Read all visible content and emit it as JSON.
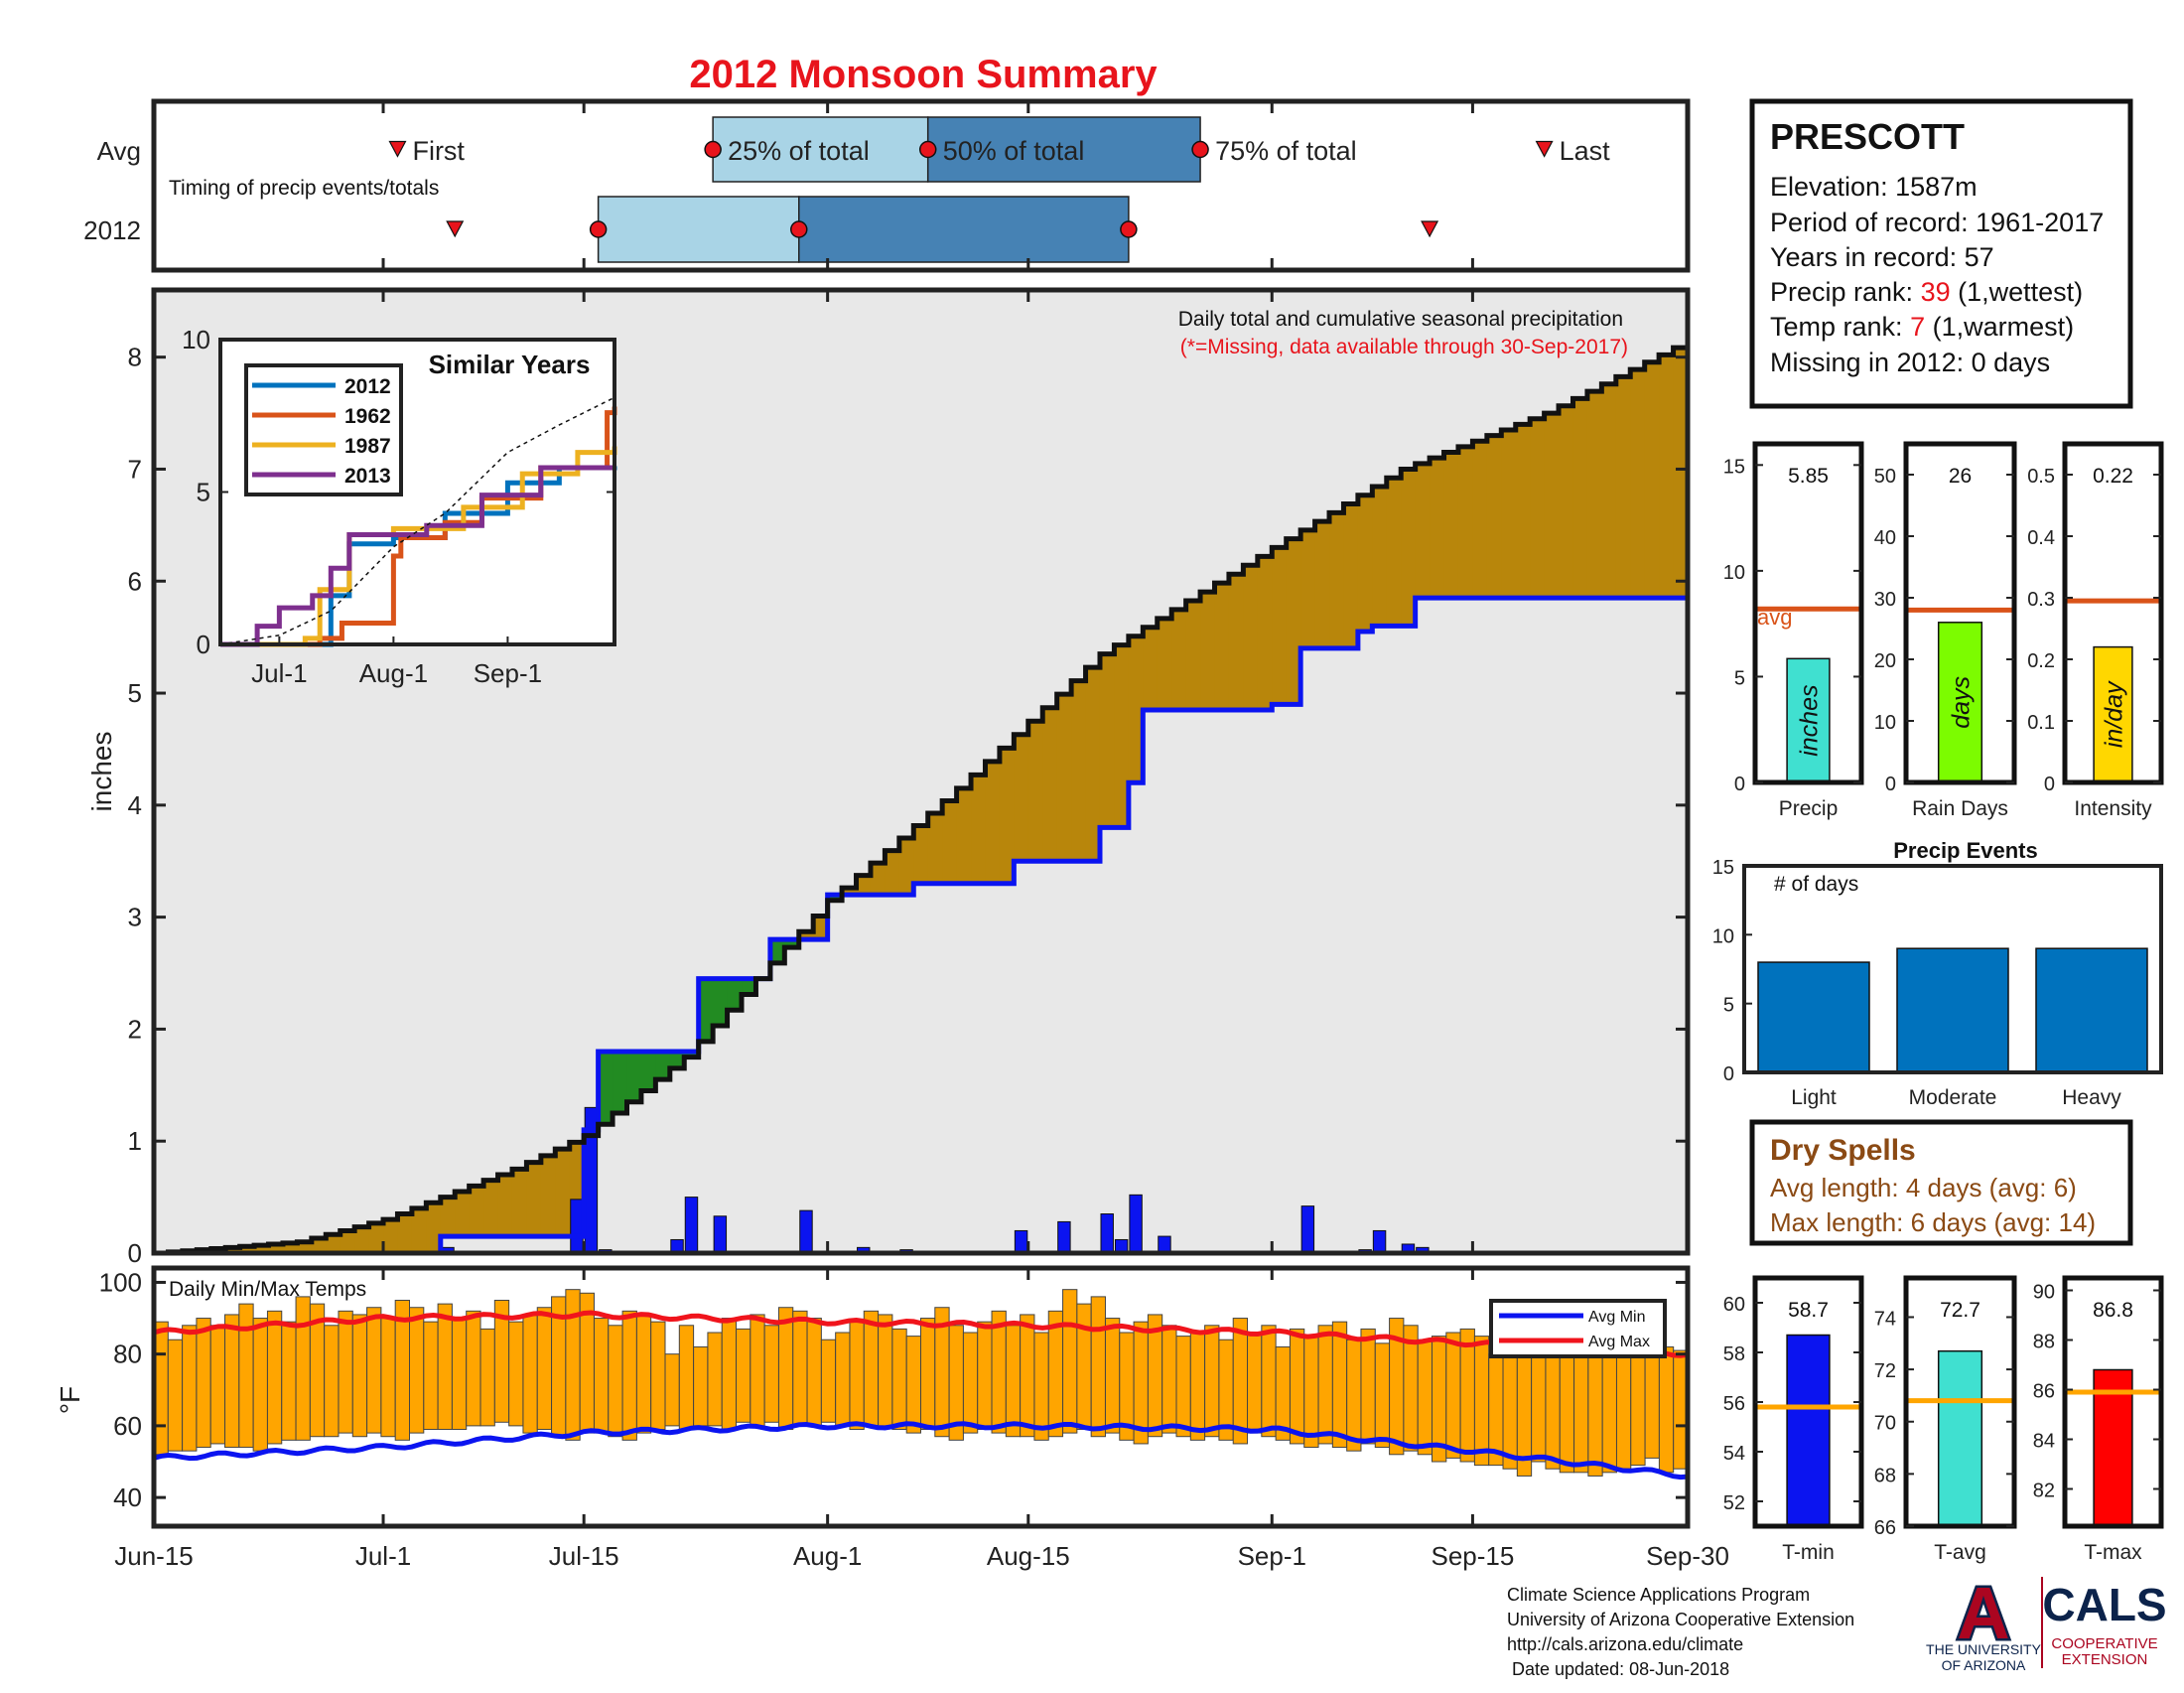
{
  "title": "2012 Monsoon Summary",
  "timing": {
    "subtitle": "Timing of precip events/totals",
    "row_labels": [
      "Avg",
      "2012"
    ],
    "first_label": "First",
    "last_label": "Last",
    "labels": {
      "q25": "25% of total",
      "q50": "50% of total",
      "q75": "75% of total"
    },
    "avg": {
      "first": "2012-07-02",
      "q25": "2012-07-24",
      "q50": "2012-08-08",
      "q75": "2012-08-27",
      "last": "2012-09-20"
    },
    "y2012": {
      "first": "2012-07-06",
      "q25": "2012-07-16",
      "q50": "2012-07-30",
      "q75": "2012-08-22",
      "last": "2012-09-12"
    }
  },
  "info": {
    "station": "PRESCOTT",
    "elevation": "Elevation: 1587m",
    "period": "Period of record: 1961-2017",
    "years": "Years in record: 57",
    "precip_rank_prefix": "Precip rank: ",
    "precip_rank": "39",
    "precip_rank_suffix": " (1,wettest)",
    "temp_rank_prefix": "Temp rank: ",
    "temp_rank": "7",
    "temp_rank_suffix": " (1,warmest)",
    "missing": "Missing in 2012: 0 days"
  },
  "main": {
    "title": "Daily total and cumulative seasonal precipitation",
    "note": "(*=Missing, data available through 30-Sep-2017)",
    "ylabel": "inches",
    "date_ticks": [
      "Jun-15",
      "Jul-1",
      "Jul-15",
      "Aug-1",
      "Aug-15",
      "Sep-1",
      "Sep-15",
      "Sep-30"
    ]
  },
  "inset": {
    "title": "Similar Years",
    "xticks": [
      "Jul-1",
      "Aug-1",
      "Sep-1"
    ],
    "yticks": [
      "0",
      "5",
      "10"
    ],
    "legend": [
      "2012",
      "1962",
      "1987",
      "2013"
    ]
  },
  "temps": {
    "title": "Daily Min/Max Temps",
    "ylabel": "°F",
    "legend_min": "Avg Min",
    "legend_max": "Avg Max"
  },
  "bars": {
    "precip": {
      "value": "5.85",
      "unit": "inches",
      "label": "Precip",
      "avg_label": "avg"
    },
    "raindays": {
      "value": "26",
      "unit": "days",
      "label": "Rain Days"
    },
    "intensity": {
      "value": "0.22",
      "unit": "in/day",
      "label": "Intensity"
    },
    "tmin": {
      "value": "58.7",
      "label": "T-min"
    },
    "tavg": {
      "value": "72.7",
      "label": "T-avg"
    },
    "tmax": {
      "value": "86.8",
      "label": "T-max"
    }
  },
  "events": {
    "title": "Precip Events",
    "ylabel": "# of days",
    "categories": [
      "Light",
      "Moderate",
      "Heavy"
    ],
    "yticks": [
      "0",
      "5",
      "10",
      "15"
    ]
  },
  "dry": {
    "title": "Dry Spells",
    "avg": "Avg length: 4 days (avg: 6)",
    "max": "Max length: 6 days (avg: 14)"
  },
  "footer": {
    "line1": "Climate Science Applications Program",
    "line2": "University of Arizona Cooperative Extension",
    "line3": "http://cals.arizona.edu/climate",
    "line4": " Date updated: 08-Jun-2018"
  },
  "logos": {
    "ua_letter": "A",
    "ua_text1": "THE UNIVERSITY",
    "ua_text2": "OF ARIZONA",
    "cals": "CALS",
    "cals_sub1": "COOPERATIVE",
    "cals_sub2": "EXTENSION"
  },
  "chart_data": [
    {
      "type": "area",
      "title": "Daily total and cumulative seasonal precipitation",
      "ylabel": "inches",
      "ylim": [
        0,
        8.6
      ],
      "x_range": [
        "2012-06-15",
        "2012-09-30"
      ],
      "series": [
        {
          "name": "Avg",
          "x": [
            "2012-06-15",
            "2012-06-25",
            "2012-07-01",
            "2012-07-10",
            "2012-07-15",
            "2012-07-22",
            "2012-08-01",
            "2012-08-10",
            "2012-08-20",
            "2012-09-01",
            "2012-09-10",
            "2012-09-20",
            "2012-09-30"
          ],
          "values": [
            0.0,
            0.1,
            0.3,
            0.75,
            1.05,
            1.75,
            3.15,
            4.15,
            5.35,
            6.3,
            7.0,
            7.5,
            8.15
          ]
        },
        {
          "name": "2012",
          "x": [
            "2012-06-15",
            "2012-07-05",
            "2012-07-14",
            "2012-07-15",
            "2012-07-16",
            "2012-07-22",
            "2012-07-23",
            "2012-07-27",
            "2012-07-28",
            "2012-07-31",
            "2012-08-01",
            "2012-08-07",
            "2012-08-14",
            "2012-08-20",
            "2012-08-22",
            "2012-08-23",
            "2012-09-01",
            "2012-09-03",
            "2012-09-07",
            "2012-09-08",
            "2012-09-11",
            "2012-09-12",
            "2012-09-30"
          ],
          "values": [
            0.0,
            0.15,
            0.15,
            1.1,
            1.8,
            1.8,
            2.45,
            2.45,
            2.8,
            2.8,
            3.2,
            3.3,
            3.5,
            3.8,
            4.2,
            4.85,
            4.9,
            5.4,
            5.55,
            5.6,
            5.85,
            5.85,
            5.85
          ]
        }
      ],
      "daily": {
        "x": [
          "2012-07-05",
          "2012-07-14",
          "2012-07-15",
          "2012-07-16",
          "2012-07-21",
          "2012-07-22",
          "2012-07-24",
          "2012-07-30",
          "2012-08-03",
          "2012-08-06",
          "2012-08-14",
          "2012-08-17",
          "2012-08-20",
          "2012-08-21",
          "2012-08-22",
          "2012-08-24",
          "2012-09-03",
          "2012-09-07",
          "2012-09-08",
          "2012-09-10",
          "2012-09-11"
        ],
        "values": [
          0.05,
          0.48,
          1.3,
          0.03,
          0.12,
          0.5,
          0.33,
          0.38,
          0.05,
          0.03,
          0.2,
          0.28,
          0.35,
          0.12,
          0.52,
          0.15,
          0.42,
          0.03,
          0.2,
          0.08,
          0.05
        ]
      }
    },
    {
      "type": "line",
      "title": "Similar Years",
      "ylim": [
        0,
        10
      ],
      "x_range": [
        "2012-06-15",
        "2012-09-30"
      ],
      "series": [
        {
          "name": "2012",
          "x": [
            "2012-06-15",
            "2012-07-15",
            "2012-07-20",
            "2012-08-01",
            "2012-08-15",
            "2012-09-01",
            "2012-09-15",
            "2012-09-30"
          ],
          "values": [
            0,
            1.6,
            3.3,
            3.5,
            4.3,
            5.3,
            5.8,
            5.85
          ]
        },
        {
          "name": "1962",
          "x": [
            "2012-06-15",
            "2012-07-12",
            "2012-07-18",
            "2012-08-01",
            "2012-08-03",
            "2012-08-15",
            "2012-08-25",
            "2012-09-10",
            "2012-09-28",
            "2012-09-30"
          ],
          "values": [
            0,
            0.2,
            0.7,
            2.9,
            3.5,
            4.0,
            4.8,
            5.8,
            7.6,
            7.8
          ]
        },
        {
          "name": "1987",
          "x": [
            "2012-06-15",
            "2012-07-08",
            "2012-07-12",
            "2012-07-20",
            "2012-08-01",
            "2012-08-20",
            "2012-09-05",
            "2012-09-20",
            "2012-09-30"
          ],
          "values": [
            0,
            0.2,
            1.8,
            3.6,
            3.8,
            4.5,
            5.6,
            6.3,
            6.5
          ]
        },
        {
          "name": "2013",
          "x": [
            "2012-06-15",
            "2012-06-25",
            "2012-07-01",
            "2012-07-10",
            "2012-07-15",
            "2012-07-20",
            "2012-08-10",
            "2012-08-25",
            "2012-09-10",
            "2012-09-30"
          ],
          "values": [
            0,
            0.6,
            1.2,
            1.6,
            2.5,
            3.6,
            3.9,
            4.9,
            5.8,
            5.8
          ]
        },
        {
          "name": "Avg",
          "x": [
            "2012-06-15",
            "2012-07-01",
            "2012-07-15",
            "2012-08-01",
            "2012-08-15",
            "2012-09-01",
            "2012-09-15",
            "2012-09-30"
          ],
          "values": [
            0,
            0.3,
            1.1,
            3.2,
            4.3,
            6.3,
            7.2,
            8.1
          ]
        }
      ]
    },
    {
      "type": "bar",
      "title": "Daily Min/Max Temps",
      "ylabel": "°F",
      "ylim": [
        32,
        104
      ],
      "x_range": [
        "2012-06-15",
        "2012-09-30"
      ],
      "avg_min": {
        "x": [
          "2012-06-15",
          "2012-07-01",
          "2012-07-15",
          "2012-08-01",
          "2012-08-15",
          "2012-09-01",
          "2012-09-15",
          "2012-09-30"
        ],
        "values": [
          51,
          54,
          58,
          60,
          60,
          59,
          53,
          46
        ]
      },
      "avg_max": {
        "x": [
          "2012-06-15",
          "2012-07-01",
          "2012-07-15",
          "2012-08-01",
          "2012-08-15",
          "2012-09-01",
          "2012-09-15",
          "2012-09-30"
        ],
        "values": [
          86,
          90,
          91,
          89,
          88,
          86,
          83,
          80
        ]
      },
      "lows": [
        52,
        53,
        53,
        54,
        55,
        54,
        54,
        53,
        55,
        56,
        56,
        57,
        57,
        58,
        57,
        58,
        57,
        56,
        58,
        59,
        59,
        59,
        60,
        60,
        61,
        60,
        58,
        59,
        57,
        56,
        58,
        58,
        57,
        56,
        58,
        59,
        60,
        59,
        60,
        60,
        59,
        61,
        60,
        61,
        59,
        60,
        60,
        61,
        60,
        59,
        60,
        60,
        59,
        58,
        59,
        57,
        56,
        58,
        59,
        58,
        57,
        57,
        56,
        57,
        58,
        59,
        57,
        58,
        56,
        55,
        57,
        58,
        57,
        56,
        57,
        56,
        55,
        58,
        57,
        56,
        55,
        54,
        55,
        54,
        53,
        55,
        54,
        52,
        53,
        52,
        50,
        51,
        50,
        49,
        49,
        48,
        46,
        50,
        48,
        47,
        47,
        46,
        47,
        48,
        49,
        51,
        47,
        48
      ],
      "highs": [
        89,
        84,
        88,
        90,
        88,
        91,
        94,
        90,
        92,
        89,
        96,
        94,
        88,
        92,
        91,
        93,
        90,
        95,
        93,
        89,
        94,
        90,
        92,
        87,
        95,
        89,
        91,
        93,
        96,
        98,
        97,
        90,
        88,
        92,
        91,
        89,
        80,
        88,
        82,
        86,
        90,
        87,
        91,
        88,
        93,
        92,
        90,
        84,
        86,
        89,
        92,
        91,
        87,
        85,
        90,
        93,
        88,
        86,
        89,
        92,
        88,
        91,
        86,
        92,
        98,
        94,
        96,
        90,
        86,
        89,
        91,
        88,
        85,
        86,
        88,
        84,
        90,
        86,
        88,
        82,
        87,
        85,
        88,
        89,
        84,
        87,
        83,
        90,
        88,
        84,
        85,
        86,
        87,
        85,
        80,
        89,
        88,
        81,
        85,
        82,
        81,
        84,
        80,
        83,
        79,
        80,
        82,
        81
      ]
    },
    {
      "type": "bar",
      "title": "Precip",
      "categories": [
        "Precip"
      ],
      "values": [
        5.85
      ],
      "avg": 8.2,
      "ylim": [
        0,
        16
      ]
    },
    {
      "type": "bar",
      "title": "Rain Days",
      "categories": [
        "Rain Days"
      ],
      "values": [
        26
      ],
      "avg": 28,
      "ylim": [
        0,
        55
      ]
    },
    {
      "type": "bar",
      "title": "Intensity",
      "categories": [
        "Intensity"
      ],
      "values": [
        0.22
      ],
      "avg": 0.295,
      "ylim": [
        0,
        0.55
      ]
    },
    {
      "type": "bar",
      "title": "Precip Events",
      "ylabel": "# of days",
      "categories": [
        "Light",
        "Moderate",
        "Heavy"
      ],
      "values": [
        8,
        9,
        9
      ],
      "ylim": [
        0,
        15
      ]
    },
    {
      "type": "bar",
      "title": "T-min",
      "categories": [
        "T-min"
      ],
      "values": [
        58.7
      ],
      "avg": 55.8,
      "ylim": [
        51,
        61
      ]
    },
    {
      "type": "bar",
      "title": "T-avg",
      "categories": [
        "T-avg"
      ],
      "values": [
        72.7
      ],
      "avg": 70.8,
      "ylim": [
        66,
        75.5
      ]
    },
    {
      "type": "bar",
      "title": "T-max",
      "categories": [
        "T-max"
      ],
      "values": [
        86.8
      ],
      "avg": 85.9,
      "ylim": [
        80.5,
        90.5
      ]
    }
  ]
}
